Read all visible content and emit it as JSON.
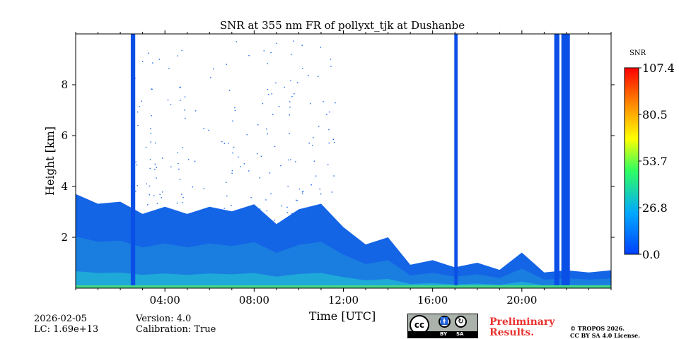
{
  "chart_data": {
    "type": "heatmap",
    "title": "SNR at 355 nm FR of pollyxt_tjk at Dushanbe",
    "xlabel": "Time [UTC]",
    "ylabel": "Height [km]",
    "xlim": [
      0,
      24
    ],
    "ylim": [
      0,
      10
    ],
    "x_ticks": [
      4,
      8,
      12,
      16,
      20
    ],
    "x_tick_labels": [
      "04:00",
      "08:00",
      "12:00",
      "16:00",
      "20:00"
    ],
    "y_ticks": [
      2,
      4,
      6,
      8
    ],
    "y_tick_labels": [
      "2",
      "4",
      "6",
      "8"
    ],
    "colorbar": {
      "label": "SNR",
      "range": [
        0.0,
        107.4
      ],
      "ticks": [
        0.0,
        26.8,
        53.7,
        80.5,
        107.4
      ],
      "tick_labels": [
        "0.0",
        "26.8",
        "53.7",
        "80.5",
        "107.4"
      ],
      "colors": [
        "#0040ff",
        "#00a0ff",
        "#30ff60",
        "#ffff00",
        "#ff8000",
        "#ff0000"
      ]
    },
    "signal_top_km": [
      {
        "t": 0.0,
        "h": 3.6
      },
      {
        "t": 1.0,
        "h": 3.4
      },
      {
        "t": 2.0,
        "h": 3.3
      },
      {
        "t": 3.0,
        "h": 3.0
      },
      {
        "t": 4.0,
        "h": 3.1
      },
      {
        "t": 5.0,
        "h": 3.0
      },
      {
        "t": 6.0,
        "h": 3.1
      },
      {
        "t": 7.0,
        "h": 3.1
      },
      {
        "t": 8.0,
        "h": 3.2
      },
      {
        "t": 9.0,
        "h": 2.6
      },
      {
        "t": 10.0,
        "h": 3.0
      },
      {
        "t": 11.0,
        "h": 3.4
      },
      {
        "t": 12.0,
        "h": 2.3
      },
      {
        "t": 13.0,
        "h": 1.8
      },
      {
        "t": 14.0,
        "h": 1.9
      },
      {
        "t": 15.0,
        "h": 1.0
      },
      {
        "t": 16.0,
        "h": 1.0
      },
      {
        "t": 17.0,
        "h": 0.9
      },
      {
        "t": 18.0,
        "h": 0.9
      },
      {
        "t": 19.0,
        "h": 0.8
      },
      {
        "t": 20.0,
        "h": 1.3
      },
      {
        "t": 21.0,
        "h": 0.7
      },
      {
        "t": 22.0,
        "h": 0.6
      },
      {
        "t": 23.0,
        "h": 0.7
      },
      {
        "t": 24.0,
        "h": 0.6
      }
    ],
    "full_column_bands_hours": [
      [
        2.47,
        2.67
      ],
      [
        16.97,
        17.12
      ],
      [
        21.45,
        21.68
      ],
      [
        21.77,
        22.15
      ]
    ],
    "near_ground_high_snr": true
  },
  "footer": {
    "date": "2026-02-05",
    "lc": "LC: 1.69e+13",
    "version": "Version: 4.0",
    "calibration": "Calibration: True",
    "preliminary_line1": "Preliminary",
    "preliminary_line2": "Results.",
    "copyright_line1": "© TROPOS 2026.",
    "copyright_line2": "CC BY SA 4.0 License.",
    "cc_label": "cc",
    "cc_by": "BY",
    "cc_sa": "SA"
  }
}
